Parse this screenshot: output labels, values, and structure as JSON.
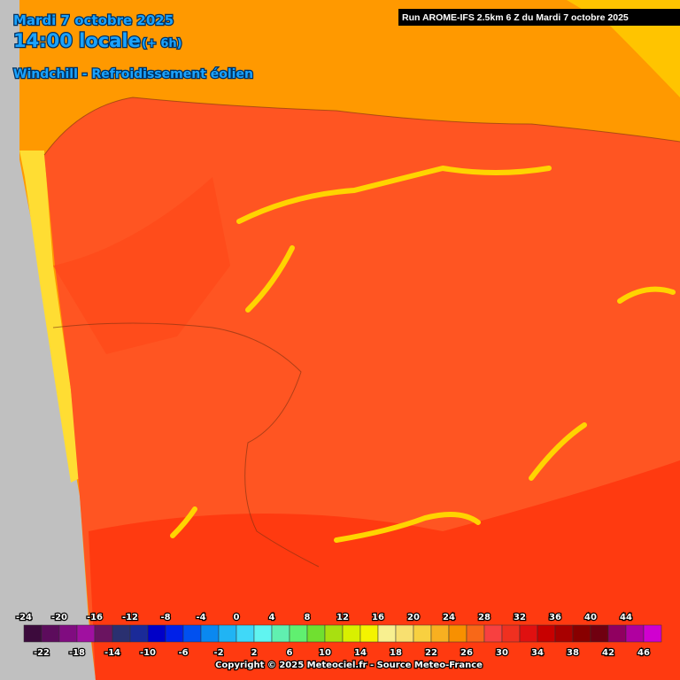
{
  "header": {
    "date": "Mardi 7 octobre 2025",
    "time": "14:00 locale",
    "offset": "(+ 6h)",
    "variable": "Windchill - Refroidissement éolien",
    "run": "Run AROME-IFS 2.5km 6 Z du Mardi 7 octobre 2025"
  },
  "legend": {
    "values": [
      -24,
      -22,
      -20,
      -18,
      -16,
      -14,
      -12,
      -10,
      -8,
      -6,
      -4,
      -2,
      0,
      2,
      4,
      6,
      8,
      10,
      12,
      14,
      16,
      18,
      20,
      22,
      24,
      26,
      28,
      30,
      32,
      34,
      36,
      38,
      40,
      42,
      44,
      46
    ],
    "colors": [
      "#3c0a3c",
      "#5c0c5c",
      "#800c80",
      "#a010a0",
      "#6a1460",
      "#2a3070",
      "#1a2a98",
      "#0000c8",
      "#0020e8",
      "#0050f0",
      "#0a88f0",
      "#20b4f4",
      "#40d8f8",
      "#60f4f0",
      "#60f0b0",
      "#60f070",
      "#70e030",
      "#a8e010",
      "#d8f000",
      "#f4f400",
      "#f8f090",
      "#f8e070",
      "#f8d040",
      "#f8b020",
      "#f89000",
      "#f86818",
      "#f84040",
      "#f03020",
      "#e01010",
      "#c80000",
      "#a80000",
      "#880000",
      "#700010",
      "#900060",
      "#b000a0",
      "#d000d0"
    ]
  },
  "copyright": "Copyright © 2025 Meteociel.fr - Source Meteo-France"
}
